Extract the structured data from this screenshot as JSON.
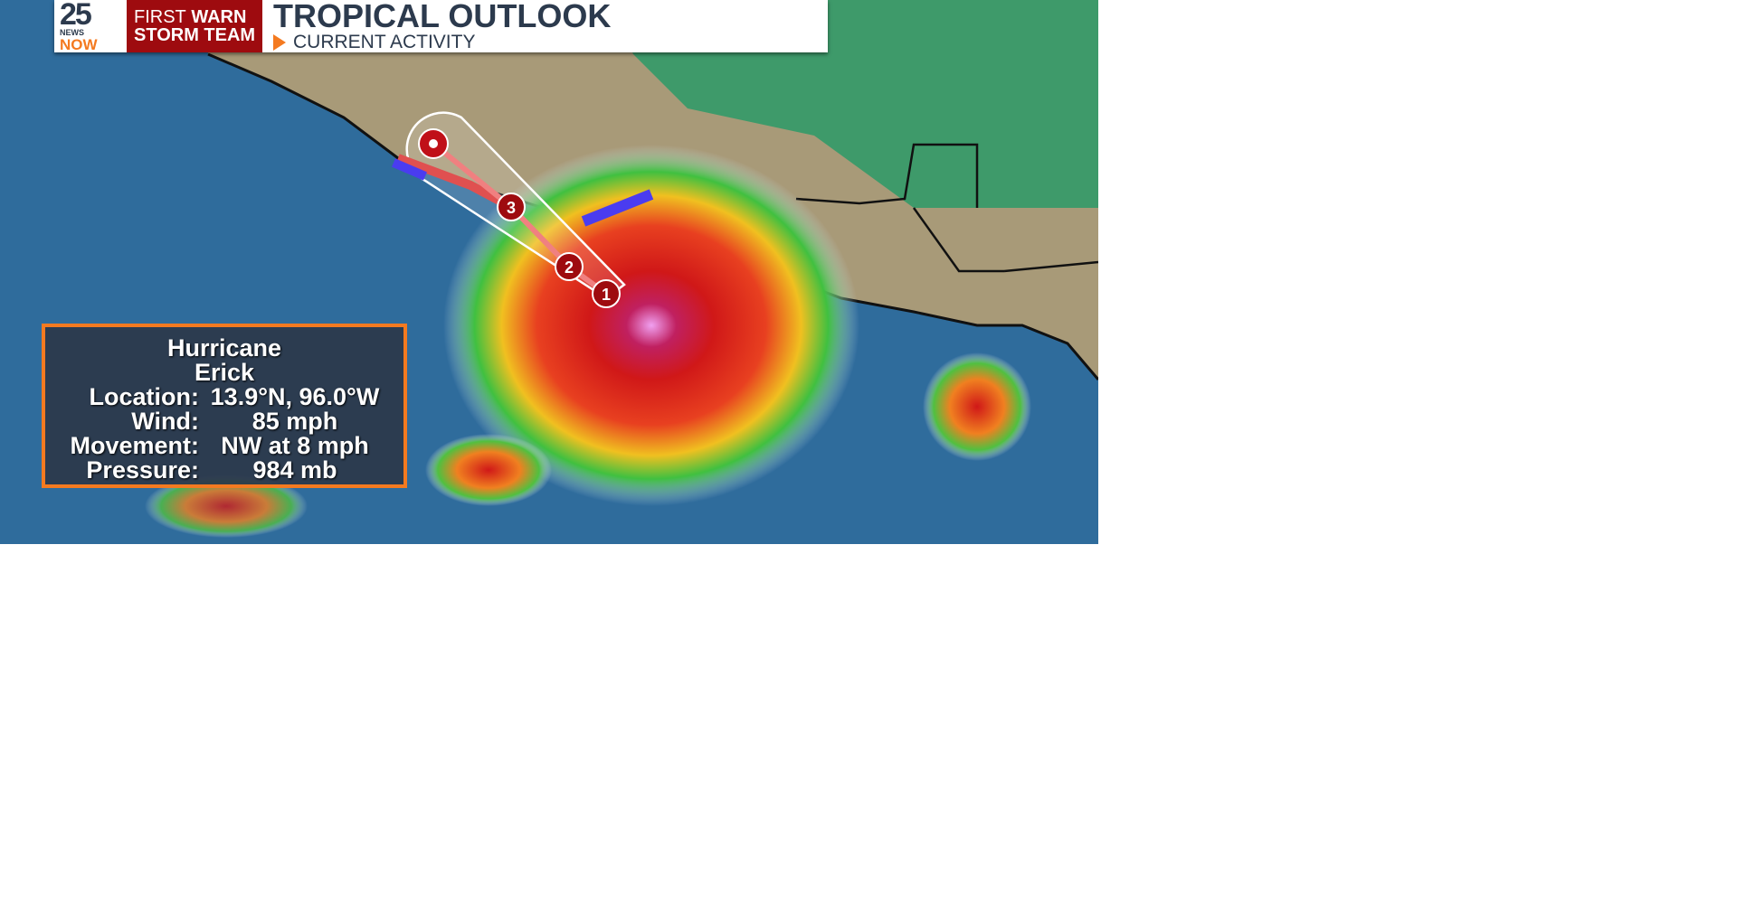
{
  "header": {
    "logo_number": "25",
    "logo_news": "NEWS",
    "logo_now": "NOW",
    "team_line1_light": "FIRST",
    "team_line1_bold": "WARN",
    "team_line2": "STORM TEAM",
    "title": "TROPICAL OUTLOOK",
    "subtitle": "CURRENT ACTIVITY"
  },
  "storm": {
    "type": "Hurricane",
    "name": "Erick",
    "rows": [
      {
        "label": "Location:",
        "value": "13.9°N, 96.0°W"
      },
      {
        "label": "Wind:",
        "value": "85 mph"
      },
      {
        "label": "Movement:",
        "value": "NW at 8 mph"
      },
      {
        "label": "Pressure:",
        "value": "984 mb"
      }
    ],
    "forecast_points": [
      "1",
      "2",
      "3"
    ]
  },
  "colors": {
    "accent_orange": "#f47a20",
    "brand_red": "#9e0b0f",
    "panel": "#2c384a",
    "warning_red": "#e05050",
    "watch_blue": "#4a3cf0"
  }
}
